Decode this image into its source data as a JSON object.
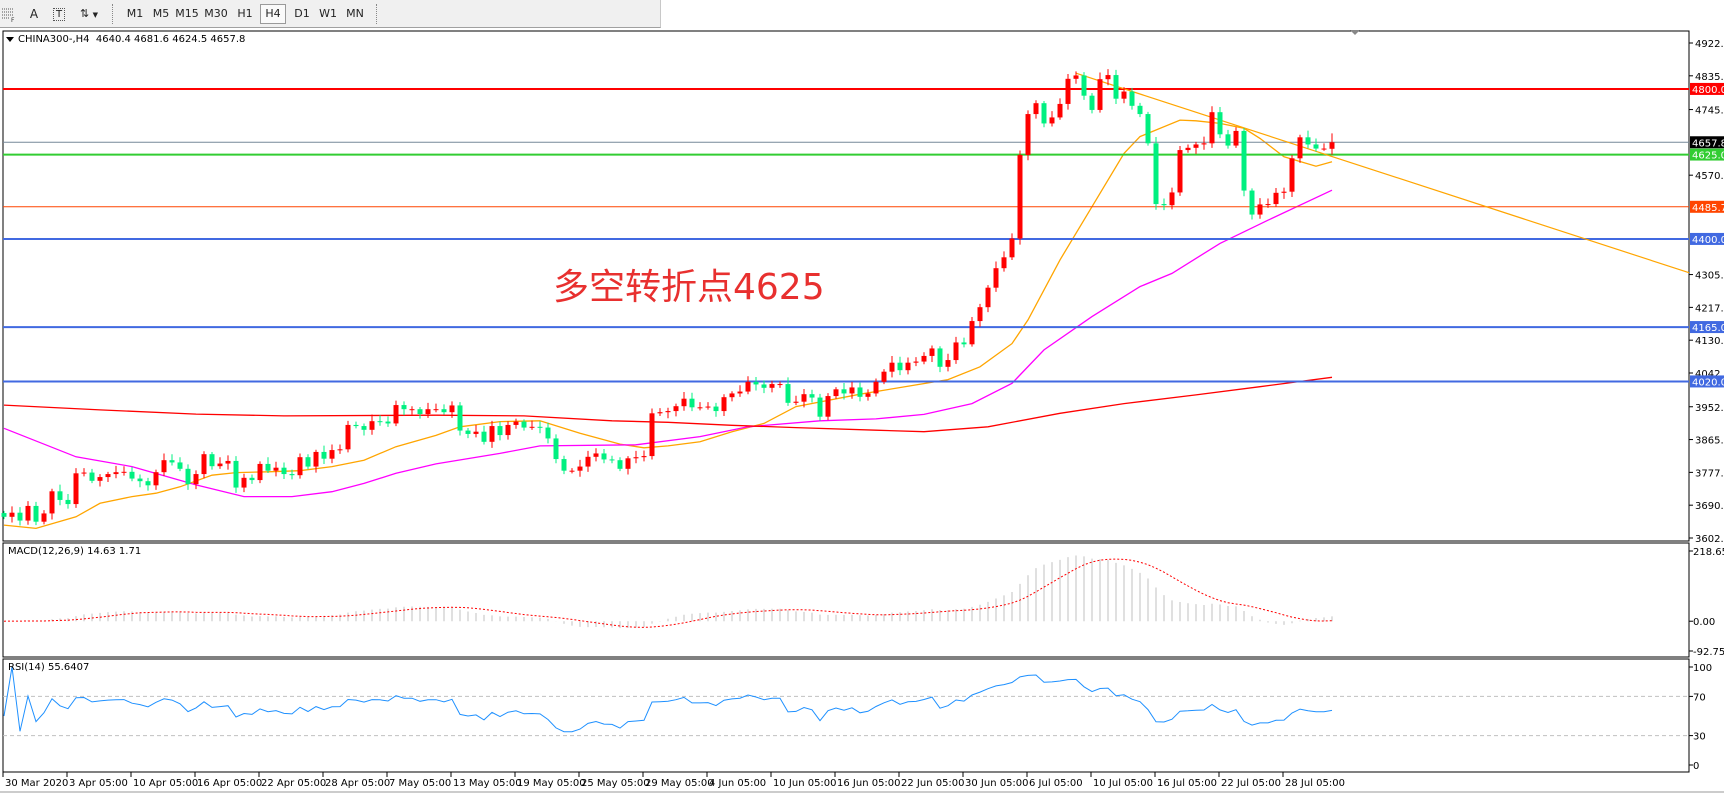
{
  "toolbar": {
    "icons": [
      "grid-f-icon",
      "text-a-icon",
      "text-label-icon",
      "arrows-icon"
    ],
    "timeframes": [
      "M1",
      "M5",
      "M15",
      "M30",
      "H1",
      "H4",
      "D1",
      "W1",
      "MN"
    ],
    "active_timeframe": "H4"
  },
  "chart": {
    "headline": "CHINA300-,H4  4640.4 4681.6 4624.5 4657.8",
    "annotation": "多空转折点4625",
    "annotation_color": "#e8302f",
    "macd_label": "MACD(12,26,9) 14.63 1.71",
    "rsi_label": "RSI(14) 55.6407"
  },
  "chart_data": [
    {
      "type": "candlestick",
      "symbol": "CHINA300-",
      "timeframe": "H4",
      "last_bar": {
        "open": 4640.4,
        "high": 4681.6,
        "low": 4624.5,
        "close": 4657.8
      },
      "up_color": "#ff0000",
      "down_color": "#00f080",
      "ylim": [
        3602.5,
        4922.5
      ],
      "y_ticks": [
        "4922.5",
        "4835.0",
        "4745.0",
        "4570.0",
        "4305.0",
        "4217.5",
        "4130.0",
        "4042.5",
        "3952.5",
        "3865.0",
        "3777.5",
        "3690.0",
        "3602.5"
      ],
      "x_tick_labels": [
        "30 Mar 2020",
        "3 Apr 05:00",
        "10 Apr 05:00",
        "16 Apr 05:00",
        "22 Apr 05:00",
        "28 Apr 05:00",
        "7 May 05:00",
        "13 May 05:00",
        "19 May 05:00",
        "25 May 05:00",
        "29 May 05:00",
        "4 Jun 05:00",
        "10 Jun 05:00",
        "16 Jun 05:00",
        "22 Jun 05:00",
        "30 Jun 05:00",
        "6 Jul 05:00",
        "10 Jul 05:00",
        "16 Jul 05:00",
        "22 Jul 05:00",
        "28 Jul 05:00"
      ],
      "closes": [
        3659,
        3670,
        3649,
        3688,
        3646,
        3668,
        3727,
        3704,
        3693,
        3775,
        3777,
        3755,
        3765,
        3773,
        3778,
        3779,
        3761,
        3754,
        3743,
        3778,
        3810,
        3804,
        3787,
        3746,
        3773,
        3826,
        3794,
        3801,
        3808,
        3737,
        3763,
        3757,
        3800,
        3782,
        3790,
        3773,
        3770,
        3818,
        3793,
        3832,
        3814,
        3837,
        3839,
        3904,
        3901,
        3891,
        3914,
        3913,
        3908,
        3957,
        3946,
        3946,
        3933,
        3946,
        3946,
        3938,
        3956,
        3889,
        3880,
        3886,
        3859,
        3901,
        3877,
        3904,
        3913,
        3897,
        3899,
        3897,
        3868,
        3813,
        3782,
        3782,
        3793,
        3819,
        3828,
        3812,
        3810,
        3787,
        3815,
        3818,
        3821,
        3935,
        3938,
        3941,
        3954,
        3974,
        3951,
        3951,
        3953,
        3941,
        3978,
        3988,
        3993,
        4019,
        4012,
        4003,
        4013,
        4013,
        3963,
        3966,
        3986,
        3977,
        3926,
        3981,
        3999,
        3988,
        4004,
        3979,
        3988,
        4019,
        4046,
        4070,
        4050,
        4070,
        4073,
        4088,
        4108,
        4059,
        4077,
        4124,
        4119,
        4181,
        4218,
        4270,
        4322,
        4351,
        4401,
        4624,
        4733,
        4762,
        4708,
        4724,
        4760,
        4827,
        4836,
        4782,
        4744,
        4826,
        4837,
        4774,
        4793,
        4755,
        4733,
        4655,
        4493,
        4490,
        4524,
        4637,
        4643,
        4652,
        4655,
        4738,
        4679,
        4649,
        4688,
        4529,
        4465,
        4492,
        4493,
        4523,
        4526,
        4615,
        4671,
        4652,
        4641,
        4641,
        4657.8
      ],
      "moving_averages": [
        {
          "color": "#ffa500",
          "points": [
            [
              0,
              3637
            ],
            [
              4,
              3628
            ],
            [
              9,
              3659
            ],
            [
              12,
              3695
            ],
            [
              16,
              3713
            ],
            [
              19,
              3722
            ],
            [
              22,
              3739
            ],
            [
              26,
              3770
            ],
            [
              29,
              3777
            ],
            [
              33,
              3779
            ],
            [
              37,
              3782
            ],
            [
              41,
              3793
            ],
            [
              45,
              3810
            ],
            [
              49,
              3846
            ],
            [
              54,
              3876
            ],
            [
              57,
              3899
            ],
            [
              62,
              3913
            ],
            [
              67,
              3915
            ],
            [
              72,
              3882
            ],
            [
              77,
              3853
            ],
            [
              80,
              3843
            ],
            [
              83,
              3848
            ],
            [
              87,
              3859
            ],
            [
              91,
              3886
            ],
            [
              95,
              3908
            ],
            [
              99,
              3953
            ],
            [
              107,
              3986
            ],
            [
              118,
              4025
            ],
            [
              122,
              4059
            ],
            [
              126,
              4121
            ],
            [
              128,
              4184
            ],
            [
              132,
              4344
            ],
            [
              136,
              4486
            ],
            [
              140,
              4628
            ],
            [
              142,
              4673
            ],
            [
              147,
              4717
            ],
            [
              149,
              4715
            ],
            [
              152,
              4708
            ],
            [
              155,
              4695
            ],
            [
              157,
              4668
            ],
            [
              160,
              4619
            ],
            [
              164,
              4594
            ],
            [
              166,
              4606
            ]
          ]
        },
        {
          "color": "#ff00ff",
          "points": [
            [
              0,
              3895
            ],
            [
              9,
              3819
            ],
            [
              16,
              3793
            ],
            [
              24,
              3744
            ],
            [
              30,
              3713
            ],
            [
              36,
              3713
            ],
            [
              41,
              3726
            ],
            [
              45,
              3748
            ],
            [
              49,
              3775
            ],
            [
              54,
              3800
            ],
            [
              62,
              3828
            ],
            [
              67,
              3848
            ],
            [
              79,
              3851
            ],
            [
              87,
              3873
            ],
            [
              93,
              3899
            ],
            [
              102,
              3915
            ],
            [
              109,
              3920
            ],
            [
              115,
              3932
            ],
            [
              121,
              3961
            ],
            [
              126,
              4015
            ],
            [
              130,
              4104
            ],
            [
              136,
              4193
            ],
            [
              142,
              4273
            ],
            [
              146,
              4308
            ],
            [
              152,
              4388
            ],
            [
              158,
              4450
            ],
            [
              166,
              4530
            ]
          ]
        },
        {
          "color": "#ff0000",
          "points": [
            [
              0,
              3957
            ],
            [
              12,
              3944
            ],
            [
              24,
              3933
            ],
            [
              35,
              3928
            ],
            [
              54,
              3930
            ],
            [
              65,
              3928
            ],
            [
              76,
              3915
            ],
            [
              83,
              3911
            ],
            [
              91,
              3903
            ],
            [
              99,
              3897
            ],
            [
              109,
              3890
            ],
            [
              115,
              3886
            ],
            [
              123,
              3899
            ],
            [
              132,
              3935
            ],
            [
              140,
              3961
            ],
            [
              149,
              3984
            ],
            [
              157,
              4006
            ],
            [
              166,
              4031
            ]
          ]
        }
      ],
      "trendline": {
        "color": "#ffa500",
        "from": [
          134,
          4842
        ],
        "to_price_at_axis": 4310
      },
      "horizontal_lines": [
        {
          "price": "4800.0",
          "color": "#ff0000"
        },
        {
          "price": "4657.8",
          "color": "#778899",
          "label_bg": "#000000",
          "current": true
        },
        {
          "price": "4625.0",
          "color": "#32cd32"
        },
        {
          "price": "4485.7",
          "color": "#ff4500"
        },
        {
          "price": "4400.0",
          "color": "#4169e1"
        },
        {
          "price": "4165.0",
          "color": "#4169e1"
        },
        {
          "price": "4020.0",
          "color": "#4169e1"
        }
      ]
    },
    {
      "type": "bar",
      "indicator": "MACD",
      "params": [
        12,
        26,
        9
      ],
      "main": 14.63,
      "signal": 1.71,
      "ylim": [
        -92.75,
        218.65
      ],
      "y_ticks": [
        "218.65",
        "0.00",
        "-92.75"
      ],
      "hist_color": "#c0c0c0",
      "signal_color": "#ff0000"
    },
    {
      "type": "line",
      "indicator": "RSI",
      "period": 14,
      "value": 55.6407,
      "ylim": [
        0,
        100
      ],
      "levels": [
        70,
        30
      ],
      "y_ticks": [
        "100",
        "70",
        "30",
        "0"
      ],
      "color": "#1e90ff"
    }
  ]
}
